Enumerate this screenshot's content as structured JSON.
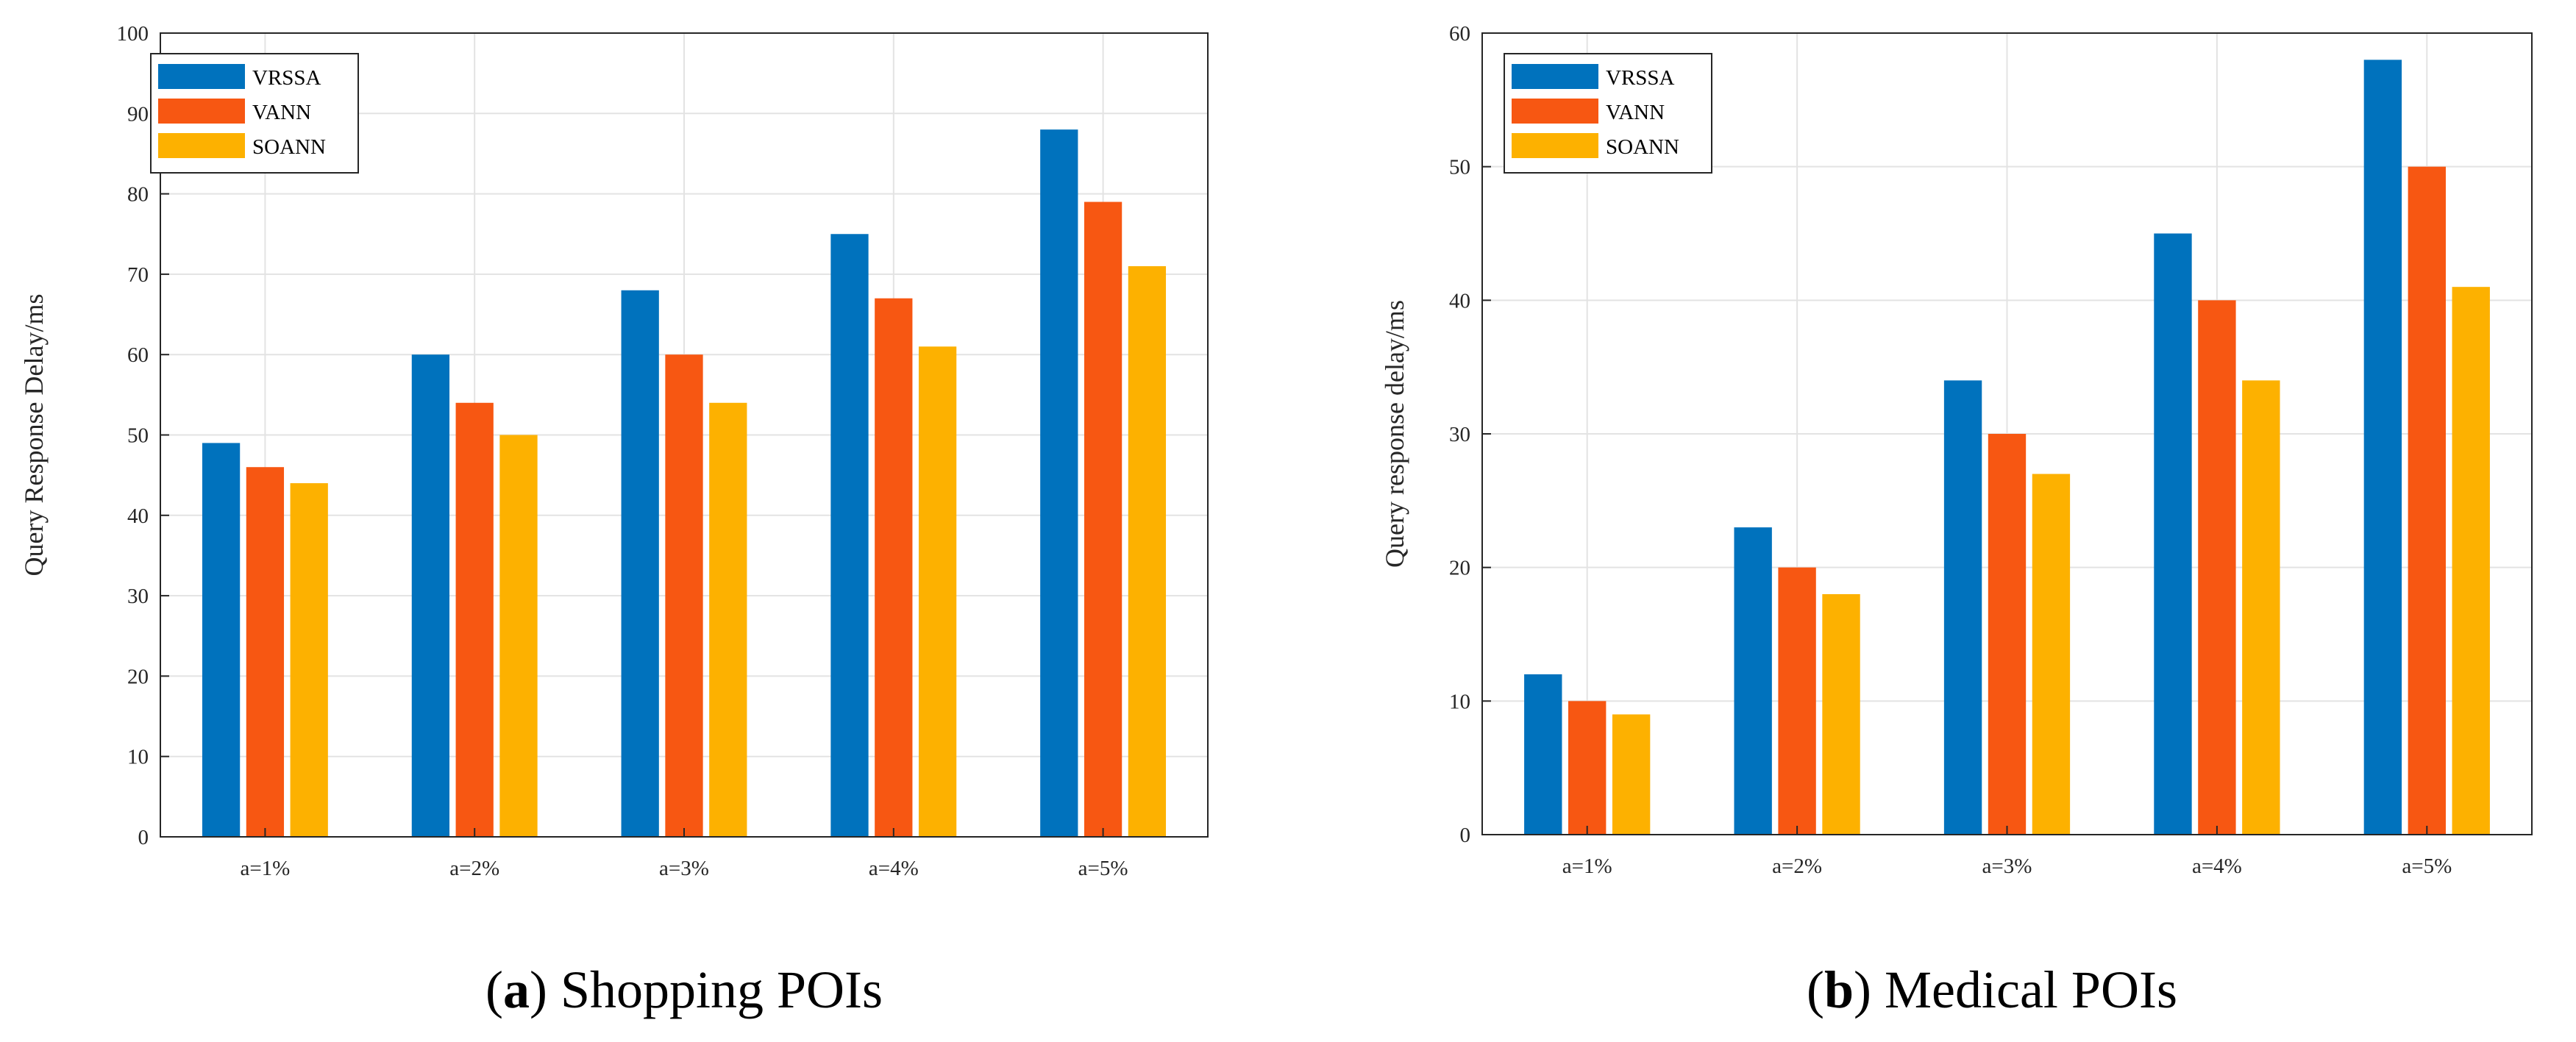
{
  "colors": {
    "VRSSA": "#0072BD",
    "VANN": "#F75712",
    "SOANN": "#FDB100",
    "grid": "#E3E3E3",
    "axis": "#262626"
  },
  "chart_data": [
    {
      "type": "bar",
      "caption_letter": "a",
      "caption_text": "Shopping POIs",
      "ylabel": "Query Response Delay/ms",
      "xlabel": "",
      "ylim": [
        0,
        100
      ],
      "yticks": [
        "0",
        "10",
        "20",
        "30",
        "40",
        "50",
        "60",
        "70",
        "80",
        "90",
        "100"
      ],
      "categories": [
        "a=1%",
        "a=2%",
        "a=3%",
        "a=4%",
        "a=5%"
      ],
      "legend_position": "top-left",
      "grid": true,
      "series": [
        {
          "name": "VRSSA",
          "values": [
            49,
            60,
            68,
            75,
            88
          ]
        },
        {
          "name": "VANN",
          "values": [
            46,
            54,
            60,
            67,
            79
          ]
        },
        {
          "name": "SOANN",
          "values": [
            44,
            50,
            54,
            61,
            71
          ]
        }
      ]
    },
    {
      "type": "bar",
      "caption_letter": "b",
      "caption_text": "Medical POIs",
      "ylabel": "Query response delay/ms",
      "xlabel": "",
      "ylim": [
        0,
        60
      ],
      "yticks": [
        "0",
        "10",
        "20",
        "30",
        "40",
        "50",
        "60"
      ],
      "categories": [
        "a=1%",
        "a=2%",
        "a=3%",
        "a=4%",
        "a=5%"
      ],
      "legend_position": "top-left",
      "grid": true,
      "series": [
        {
          "name": "VRSSA",
          "values": [
            12,
            23,
            34,
            45,
            58
          ]
        },
        {
          "name": "VANN",
          "values": [
            10,
            20,
            30,
            40,
            50
          ]
        },
        {
          "name": "SOANN",
          "values": [
            9,
            18,
            27,
            34,
            41
          ]
        }
      ]
    }
  ]
}
